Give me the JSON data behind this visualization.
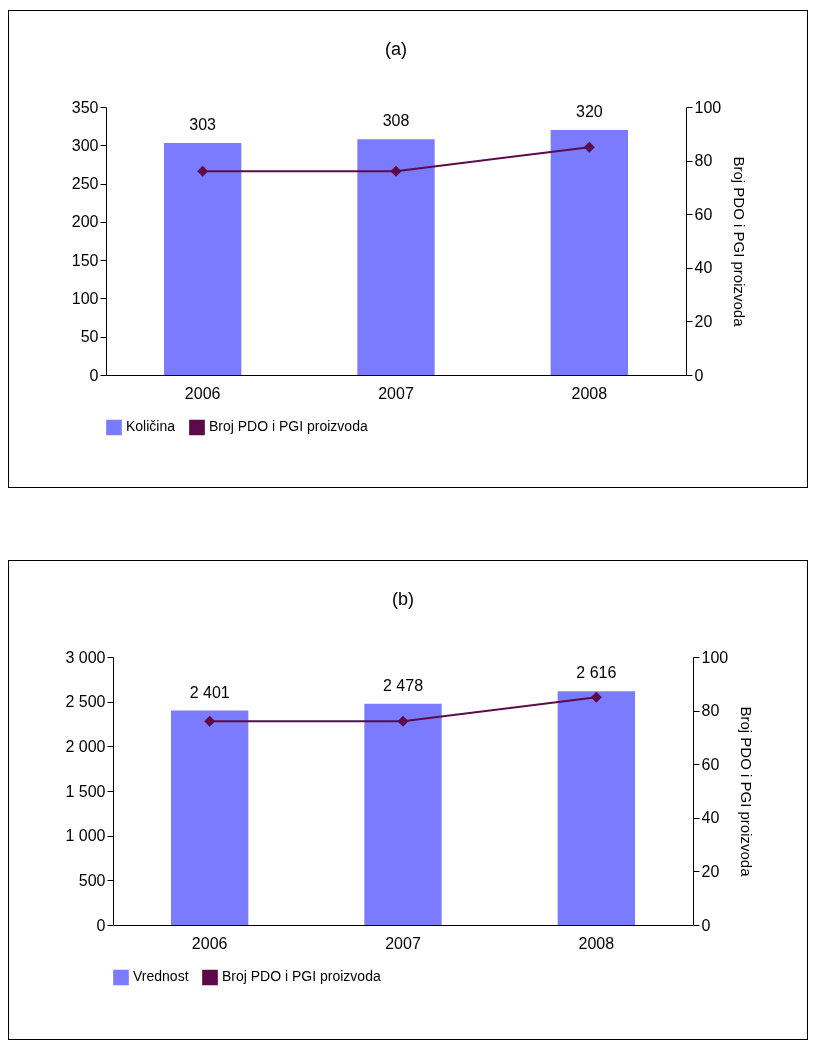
{
  "chart_data": [
    {
      "type": "bar",
      "title": "(a)",
      "y2label": "Broj PDO i PGI proizvoda",
      "categories": [
        "2006",
        "2007",
        "2008"
      ],
      "series": [
        {
          "name": "Količina",
          "color": "#7b7bff",
          "values": [
            303,
            308,
            320
          ],
          "value_labels": [
            "303",
            "308",
            "320"
          ]
        },
        {
          "name": "Broj PDO i PGI proizvoda",
          "type": "line",
          "axis": "y2",
          "color": "#5c0a4a",
          "values": [
            76,
            76,
            85
          ]
        }
      ],
      "ylim": [
        0,
        350
      ],
      "yticks": [
        0,
        50,
        100,
        150,
        200,
        250,
        300,
        350
      ],
      "y2lim": [
        0,
        100
      ],
      "y2ticks": [
        0,
        20,
        40,
        60,
        80,
        100
      ],
      "marker": "diamond",
      "legend": "bottom",
      "grid": false
    },
    {
      "type": "bar",
      "title": "(b)",
      "y2label": "Broj PDO i PGI proizvoda",
      "categories": [
        "2006",
        "2007",
        "2008"
      ],
      "series": [
        {
          "name": "Vrednost",
          "color": "#7b7bff",
          "values": [
            2401,
            2478,
            2616
          ],
          "value_labels": [
            "2 401",
            "2 478",
            "2 616"
          ]
        },
        {
          "name": "Broj PDO i PGI proizvoda",
          "type": "line",
          "axis": "y2",
          "color": "#5c0a4a",
          "values": [
            76,
            76,
            85
          ]
        }
      ],
      "ylim": [
        0,
        3000
      ],
      "yticks": [
        0,
        500,
        {
          "value": 1000,
          "label": "1 000"
        },
        {
          "value": 1500,
          "label": "1 500"
        },
        {
          "value": 2000,
          "label": "2 000"
        },
        {
          "value": 2500,
          "label": "2 500"
        },
        {
          "value": 3000,
          "label": "3 000"
        }
      ],
      "y2lim": [
        0,
        100
      ],
      "y2ticks": [
        0,
        20,
        40,
        60,
        80,
        100
      ],
      "marker": "diamond",
      "legend": "bottom",
      "grid": false
    }
  ]
}
